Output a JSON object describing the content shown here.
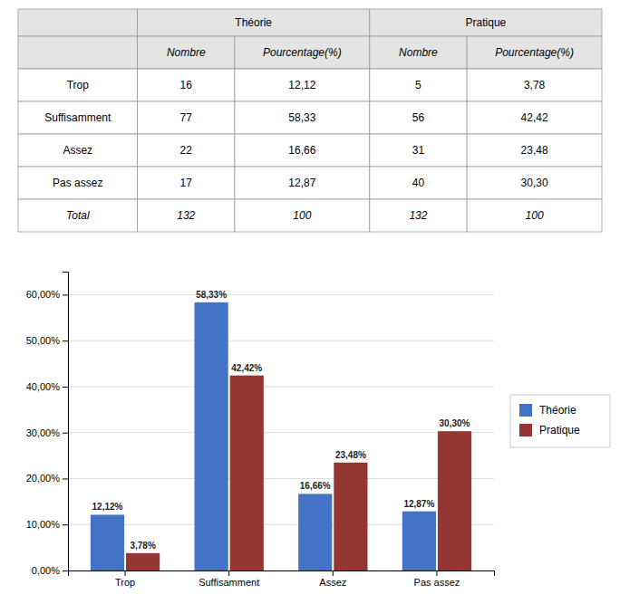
{
  "chart_data": [
    {
      "type": "table",
      "column_groups": [
        "Théorie",
        "Pratique"
      ],
      "columns": [
        null,
        "Nombre",
        "Pourcentage(%)",
        "Nombre",
        "Pourcentage(%)"
      ],
      "rows": [
        [
          "Trop",
          "16",
          "12,12",
          "5",
          "3,78"
        ],
        [
          "Suffisamment",
          "77",
          "58,33",
          "56",
          "42,42"
        ],
        [
          "Assez",
          "22",
          "16,66",
          "31",
          "23,48"
        ],
        [
          "Pas assez",
          "17",
          "12,87",
          "40",
          "30,30"
        ],
        [
          "Total",
          "132",
          "100",
          "132",
          "100"
        ]
      ]
    },
    {
      "type": "bar",
      "categories": [
        "Trop",
        "Suffisamment",
        "Assez",
        "Pas assez"
      ],
      "series": [
        {
          "name": "Théorie",
          "color": "#4472C4",
          "values": [
            12.12,
            58.33,
            16.66,
            12.87
          ],
          "value_labels": [
            "12,12%",
            "58,33%",
            "16,66%",
            "12,87%"
          ]
        },
        {
          "name": "Pratique",
          "color": "#943634",
          "values": [
            3.78,
            42.42,
            23.48,
            30.3
          ],
          "value_labels": [
            "3,78%",
            "42,42%",
            "23,48%",
            "30,30%"
          ]
        }
      ],
      "ylim": [
        0,
        65
      ],
      "yticks": [
        {
          "value": 0,
          "label": "0,00%"
        },
        {
          "value": 10,
          "label": "10,00%"
        },
        {
          "value": 20,
          "label": "20,00%"
        },
        {
          "value": 30,
          "label": "30,00%"
        },
        {
          "value": 40,
          "label": "40,00%"
        },
        {
          "value": 50,
          "label": "50,00%"
        },
        {
          "value": 60,
          "label": "60,00%"
        }
      ],
      "grid": true,
      "data_labels": true,
      "legend": "right"
    }
  ]
}
